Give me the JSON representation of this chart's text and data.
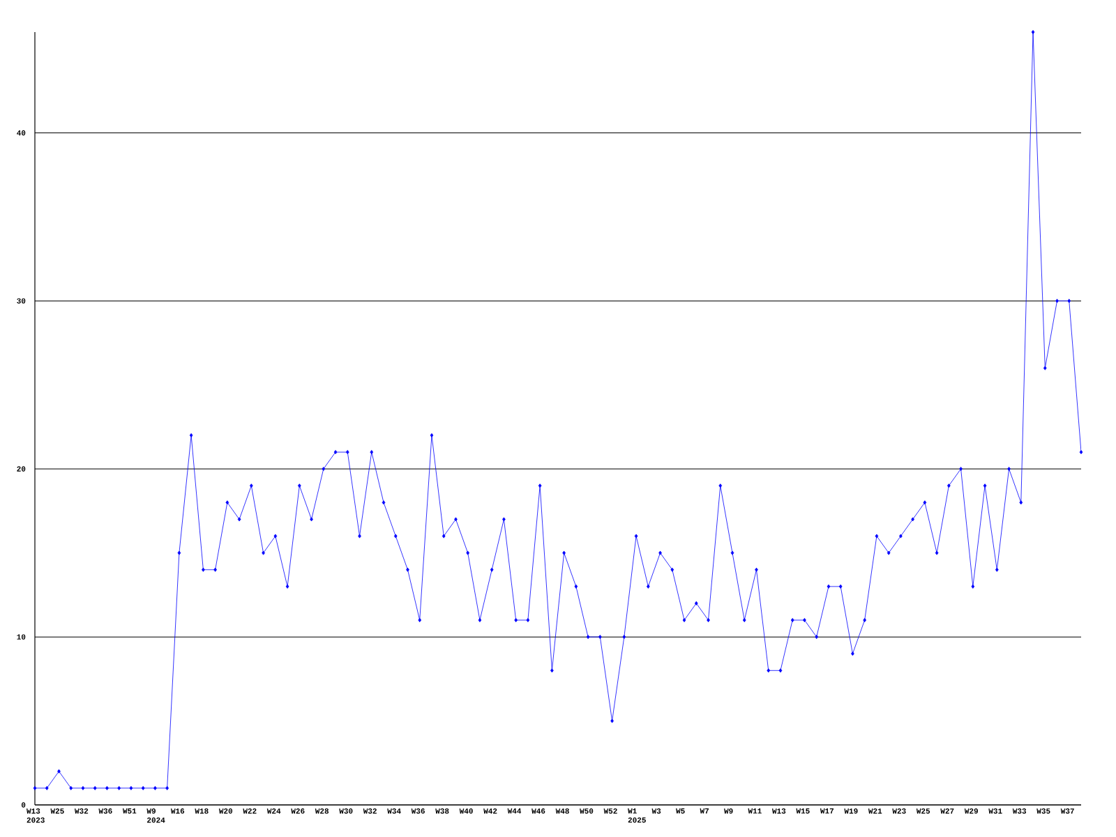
{
  "chart_data": {
    "type": "line",
    "categories": [
      "W13 2023",
      null,
      "W25",
      null,
      "W32",
      null,
      "W36",
      null,
      "W51",
      null,
      "W9 2024",
      null,
      "W16",
      null,
      "W18",
      null,
      "W20",
      null,
      "W22",
      null,
      "W24",
      null,
      "W26",
      null,
      "W28",
      null,
      "W30",
      null,
      "W32",
      null,
      "W34",
      null,
      "W36",
      null,
      "W38",
      null,
      "W40",
      null,
      "W42",
      null,
      "W44",
      null,
      "W46",
      null,
      "W48",
      null,
      "W50",
      null,
      "W52",
      null,
      "W1 2025",
      null,
      "W3",
      null,
      "W5",
      null,
      "W7",
      null,
      "W9",
      null,
      "W11",
      null,
      "W13",
      null,
      "W15",
      null,
      "W17",
      null,
      "W19",
      null,
      "W21",
      null,
      "W23",
      null,
      "W25",
      null,
      "W27",
      null,
      "W29",
      null,
      "W31",
      null,
      "W33",
      null,
      "W35",
      null,
      "W37",
      null
    ],
    "series": [
      {
        "color": "#0000ff",
        "values": [
          1,
          1,
          2,
          1,
          1,
          1,
          1,
          1,
          1,
          1,
          1,
          1,
          15,
          22,
          14,
          14,
          18,
          17,
          19,
          15,
          16,
          13,
          19,
          17,
          20,
          21,
          21,
          16,
          21,
          18,
          16,
          14,
          11,
          22,
          16,
          17,
          15,
          11,
          14,
          17,
          11,
          11,
          19,
          8,
          15,
          13,
          10,
          10,
          5,
          10,
          16,
          13,
          15,
          14,
          11,
          12,
          11,
          19,
          15,
          11,
          14,
          8,
          8,
          11,
          11,
          10,
          13,
          13,
          9,
          11,
          16,
          15,
          16,
          17,
          18,
          15,
          19,
          20,
          13,
          19,
          14,
          20,
          18,
          46,
          26,
          30,
          30,
          21
        ]
      }
    ],
    "ylim": [
      0,
      46
    ],
    "yticks": [
      0,
      10,
      20,
      30,
      40
    ],
    "grid": "y",
    "marker": "diamond",
    "line_style": "solid"
  }
}
